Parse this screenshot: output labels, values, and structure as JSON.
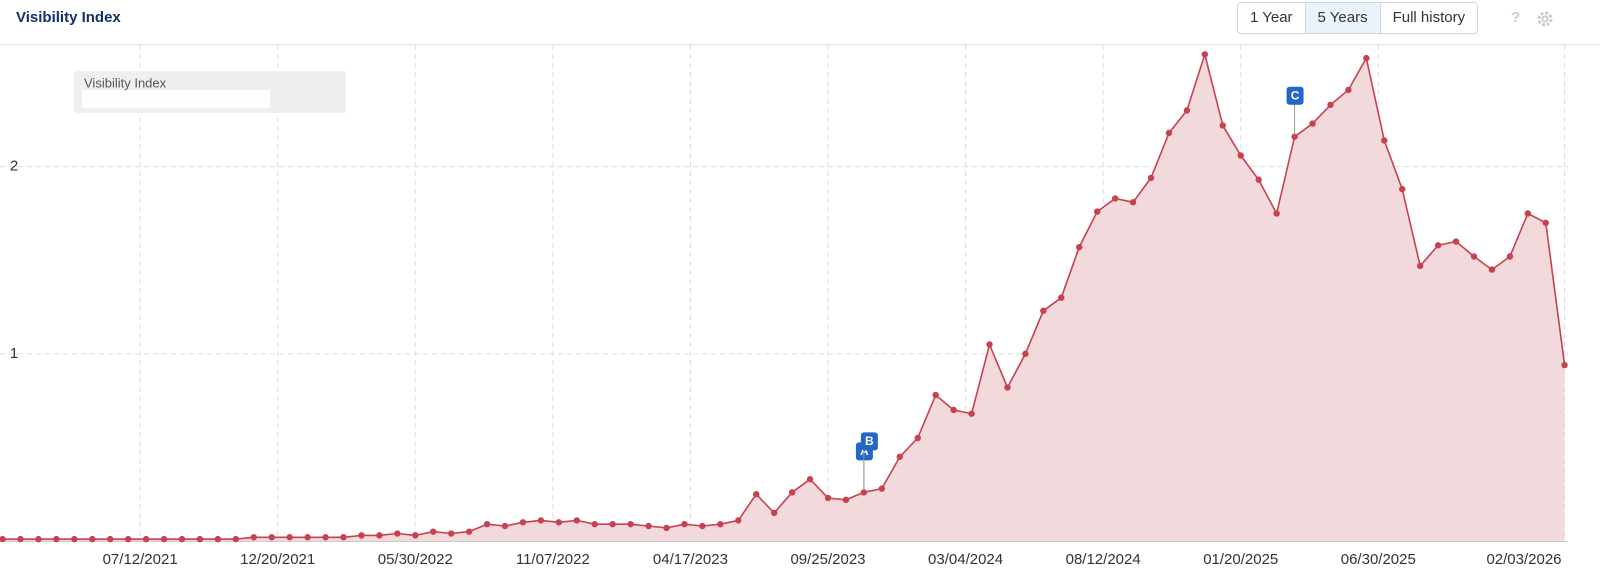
{
  "header": {
    "title": "Visibility Index",
    "buttons": [
      "1 Year",
      "5 Years",
      "Full history"
    ],
    "selected": 1,
    "help": "?"
  },
  "chart_data": {
    "type": "area",
    "x": [
      "02/01/2021",
      "02/22/2021",
      "03/15/2021",
      "04/05/2021",
      "04/26/2021",
      "05/17/2021",
      "06/07/2021",
      "06/28/2021",
      "07/19/2021",
      "08/09/2021",
      "08/30/2021",
      "09/20/2021",
      "10/11/2021",
      "11/01/2021",
      "11/22/2021",
      "12/13/2021",
      "01/03/2022",
      "01/24/2022",
      "02/14/2022",
      "03/07/2022",
      "03/28/2022",
      "04/18/2022",
      "05/09/2022",
      "05/30/2022",
      "06/20/2022",
      "07/11/2022",
      "08/01/2022",
      "08/22/2022",
      "09/12/2022",
      "10/03/2022",
      "10/24/2022",
      "11/14/2022",
      "12/05/2022",
      "12/26/2022",
      "01/16/2023",
      "02/06/2023",
      "02/27/2023",
      "03/20/2023",
      "04/10/2023",
      "05/01/2023",
      "05/22/2023",
      "06/12/2023",
      "07/03/2023",
      "07/24/2023",
      "08/14/2023",
      "09/04/2023",
      "09/25/2023",
      "10/16/2023",
      "11/06/2023",
      "11/27/2023",
      "12/18/2023",
      "01/08/2024",
      "01/29/2024",
      "02/19/2024",
      "03/11/2024",
      "04/01/2024",
      "04/22/2024",
      "05/13/2024",
      "06/03/2024",
      "06/24/2024",
      "07/15/2024",
      "08/05/2024",
      "08/26/2024",
      "09/16/2024",
      "10/07/2024",
      "10/28/2024",
      "11/18/2024",
      "12/09/2024",
      "12/30/2024",
      "01/20/2025",
      "02/10/2025",
      "03/03/2025",
      "03/24/2025",
      "04/14/2025",
      "05/05/2025",
      "05/26/2025",
      "06/16/2025",
      "07/07/2025",
      "07/28/2025",
      "08/18/2025",
      "09/08/2025",
      "09/29/2025",
      "10/20/2025",
      "11/10/2025",
      "12/01/2025",
      "12/22/2025",
      "01/12/2026",
      "02/03/2026"
    ],
    "series": [
      {
        "name": "Visibility Index",
        "color": "#c8414f",
        "fill": "#f2d9dc",
        "values": [
          0.01,
          0.01,
          0.01,
          0.01,
          0.01,
          0.01,
          0.01,
          0.01,
          0.01,
          0.01,
          0.01,
          0.01,
          0.01,
          0.01,
          0.02,
          0.02,
          0.02,
          0.02,
          0.02,
          0.02,
          0.03,
          0.03,
          0.04,
          0.03,
          0.05,
          0.04,
          0.05,
          0.09,
          0.08,
          0.1,
          0.11,
          0.1,
          0.11,
          0.09,
          0.09,
          0.09,
          0.08,
          0.07,
          0.09,
          0.08,
          0.09,
          0.11,
          0.25,
          0.15,
          0.26,
          0.33,
          0.23,
          0.22,
          0.26,
          0.28,
          0.45,
          0.55,
          0.78,
          0.7,
          0.68,
          1.05,
          0.82,
          1.0,
          1.23,
          1.3,
          1.57,
          1.76,
          1.83,
          1.81,
          1.94,
          2.18,
          2.3,
          2.6,
          2.22,
          2.06,
          1.93,
          1.75,
          2.16,
          2.23,
          2.33,
          2.41,
          2.58,
          2.14,
          1.88,
          1.47,
          1.58,
          1.6,
          1.52,
          1.45,
          1.52,
          1.75,
          1.7,
          0.94
        ]
      }
    ],
    "xlim": [
      "01/29/2021",
      "02/07/2026"
    ],
    "xticks": [
      "07/12/2021",
      "12/20/2021",
      "05/30/2022",
      "11/07/2022",
      "04/17/2023",
      "09/25/2023",
      "03/04/2024",
      "08/12/2024",
      "01/20/2025",
      "06/30/2025",
      "02/03/2026"
    ],
    "ylim": [
      0,
      2.65
    ],
    "yticks": [
      1,
      2
    ],
    "grid": true,
    "annotations": [
      {
        "label": "A",
        "x": "11/06/2023"
      },
      {
        "label": "B",
        "x": "11/06/2023"
      },
      {
        "label": "C",
        "x": "03/24/2025"
      }
    ]
  }
}
